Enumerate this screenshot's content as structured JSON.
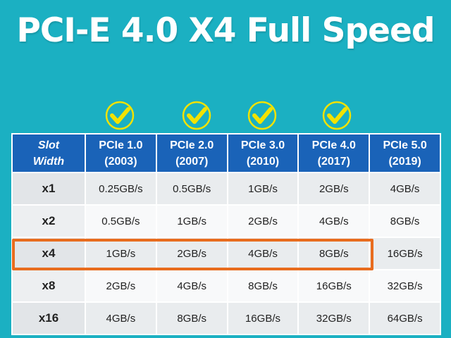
{
  "title": "PCI-E 4.0 X4 Full Speed",
  "check_color": "#f2e200",
  "header_color": "#1a63b8",
  "highlight_color": "#e86c1e",
  "table": {
    "corner": {
      "line1": "Slot",
      "line2": "Width"
    },
    "columns": [
      {
        "name": "PCIe 1.0",
        "year": "(2003)",
        "checked": true
      },
      {
        "name": "PCIe 2.0",
        "year": "(2007)",
        "checked": true
      },
      {
        "name": "PCIe 3.0",
        "year": "(2010)",
        "checked": true
      },
      {
        "name": "PCIe 4.0",
        "year": "(2017)",
        "checked": true
      },
      {
        "name": "PCIe 5.0",
        "year": "(2019)",
        "checked": false
      }
    ],
    "rows": [
      {
        "label": "x1",
        "values": [
          "0.25GB/s",
          "0.5GB/s",
          "1GB/s",
          "2GB/s",
          "4GB/s"
        ]
      },
      {
        "label": "x2",
        "values": [
          "0.5GB/s",
          "1GB/s",
          "2GB/s",
          "4GB/s",
          "8GB/s"
        ]
      },
      {
        "label": "x4",
        "values": [
          "1GB/s",
          "2GB/s",
          "4GB/s",
          "8GB/s",
          "16GB/s"
        ],
        "highlighted": true
      },
      {
        "label": "x8",
        "values": [
          "2GB/s",
          "4GB/s",
          "8GB/s",
          "16GB/s",
          "32GB/s"
        ]
      },
      {
        "label": "x16",
        "values": [
          "4GB/s",
          "8GB/s",
          "16GB/s",
          "32GB/s",
          "64GB/s"
        ]
      }
    ]
  }
}
